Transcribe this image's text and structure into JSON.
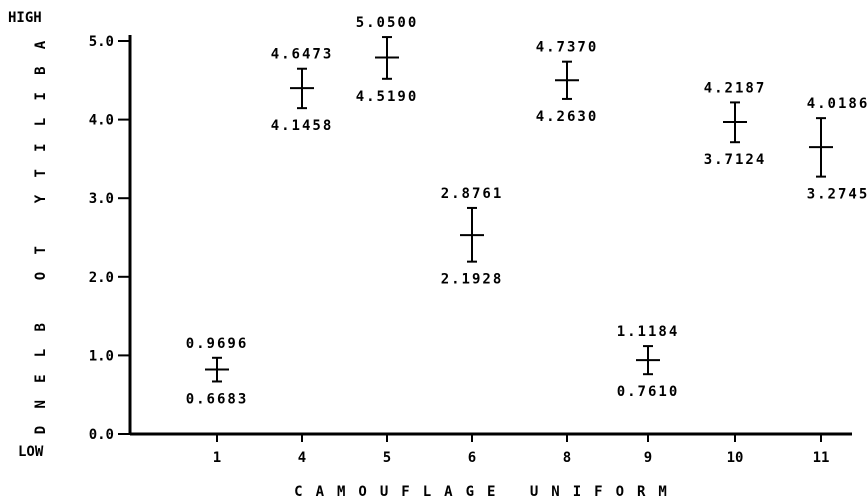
{
  "chart_data": {
    "type": "scatter",
    "subtype": "error-bar",
    "title": "",
    "xlabel": "CAMOUFLAGE UNIFORM",
    "ylabel": "ABILITY TO BLEND",
    "y_high_label": "HIGH",
    "y_low_label": "LOW",
    "ylim": [
      0,
      5
    ],
    "yticks": [
      "0.0",
      "1.0",
      "2.0",
      "3.0",
      "4.0",
      "5.0"
    ],
    "categories": [
      "1",
      "4",
      "5",
      "6",
      "8",
      "9",
      "10",
      "11"
    ],
    "means": [
      0.82,
      4.4,
      4.79,
      2.53,
      4.5,
      0.94,
      3.97,
      3.65
    ],
    "upper": [
      "0.9696",
      "4.6473",
      "5.0500",
      "2.8761",
      "4.7370",
      "1.1184",
      "4.2187",
      "4.0186"
    ],
    "lower": [
      "0.6683",
      "4.1458",
      "4.5190",
      "2.1928",
      "4.2630",
      "0.7610",
      "3.7124",
      "3.2745"
    ],
    "grid": false,
    "legend": "none"
  }
}
